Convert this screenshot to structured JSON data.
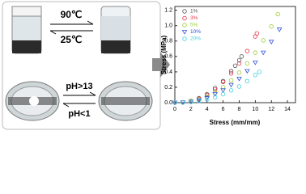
{
  "photo_labels": {
    "heat": "90℃",
    "cool": "25℃",
    "base": "pH>13",
    "acid": "pH<1"
  },
  "chart_data": {
    "type": "scatter",
    "x_label": "Stress (mm/mm)",
    "y_label": "Stress (MPa)",
    "xlim": [
      0,
      15
    ],
    "xticks": [
      0,
      2,
      4,
      6,
      8,
      10,
      12,
      14
    ],
    "ylim": [
      0,
      1.25
    ],
    "yticks": [
      {
        "value": 0,
        "label": "0.0"
      },
      0.2,
      0.4,
      0.6,
      0.8,
      {
        "value": 1,
        "label": "1.0"
      },
      1.2
    ],
    "legend": "upper left",
    "series": [
      {
        "name": "1%",
        "color": "#555555",
        "marker": "circle",
        "x": [
          0,
          1,
          2,
          3,
          4,
          5,
          6,
          7,
          7.5,
          8,
          8.3
        ],
        "values": [
          0,
          0.005,
          0.023,
          0.058,
          0.11,
          0.19,
          0.28,
          0.41,
          0.48,
          0.55,
          0.6
        ]
      },
      {
        "name": "3%",
        "color": "#e8334a",
        "marker": "circle",
        "x": [
          0,
          1,
          2,
          3,
          4,
          5,
          6,
          7,
          8,
          9,
          10,
          10.2
        ],
        "values": [
          0,
          0.004,
          0.02,
          0.05,
          0.1,
          0.17,
          0.27,
          0.38,
          0.51,
          0.67,
          0.86,
          0.9
        ]
      },
      {
        "name": "5%",
        "color": "#9acd32",
        "marker": "circle",
        "x": [
          0,
          1,
          2,
          3,
          4,
          5,
          6,
          7,
          8,
          9,
          10,
          11,
          12,
          12.8
        ],
        "values": [
          0,
          0.003,
          0.02,
          0.04,
          0.08,
          0.13,
          0.2,
          0.29,
          0.39,
          0.51,
          0.65,
          0.81,
          0.99,
          1.15
        ]
      },
      {
        "name": "10%",
        "color": "#3050d8",
        "marker": "triangle-down",
        "x": [
          0,
          1,
          2,
          3,
          4,
          5,
          6,
          7,
          8,
          9,
          10,
          11,
          12,
          13
        ],
        "values": [
          0,
          0.003,
          0.01,
          0.03,
          0.06,
          0.11,
          0.16,
          0.23,
          0.31,
          0.41,
          0.52,
          0.65,
          0.79,
          0.95
        ]
      },
      {
        "name": "20%",
        "color": "#40d0e0",
        "marker": "circle",
        "x": [
          0,
          1,
          2,
          3,
          4,
          5,
          6,
          7,
          8,
          9,
          10,
          10.5
        ],
        "values": [
          0,
          0.002,
          0.01,
          0.02,
          0.04,
          0.07,
          0.11,
          0.16,
          0.21,
          0.28,
          0.36,
          0.4
        ]
      }
    ]
  }
}
